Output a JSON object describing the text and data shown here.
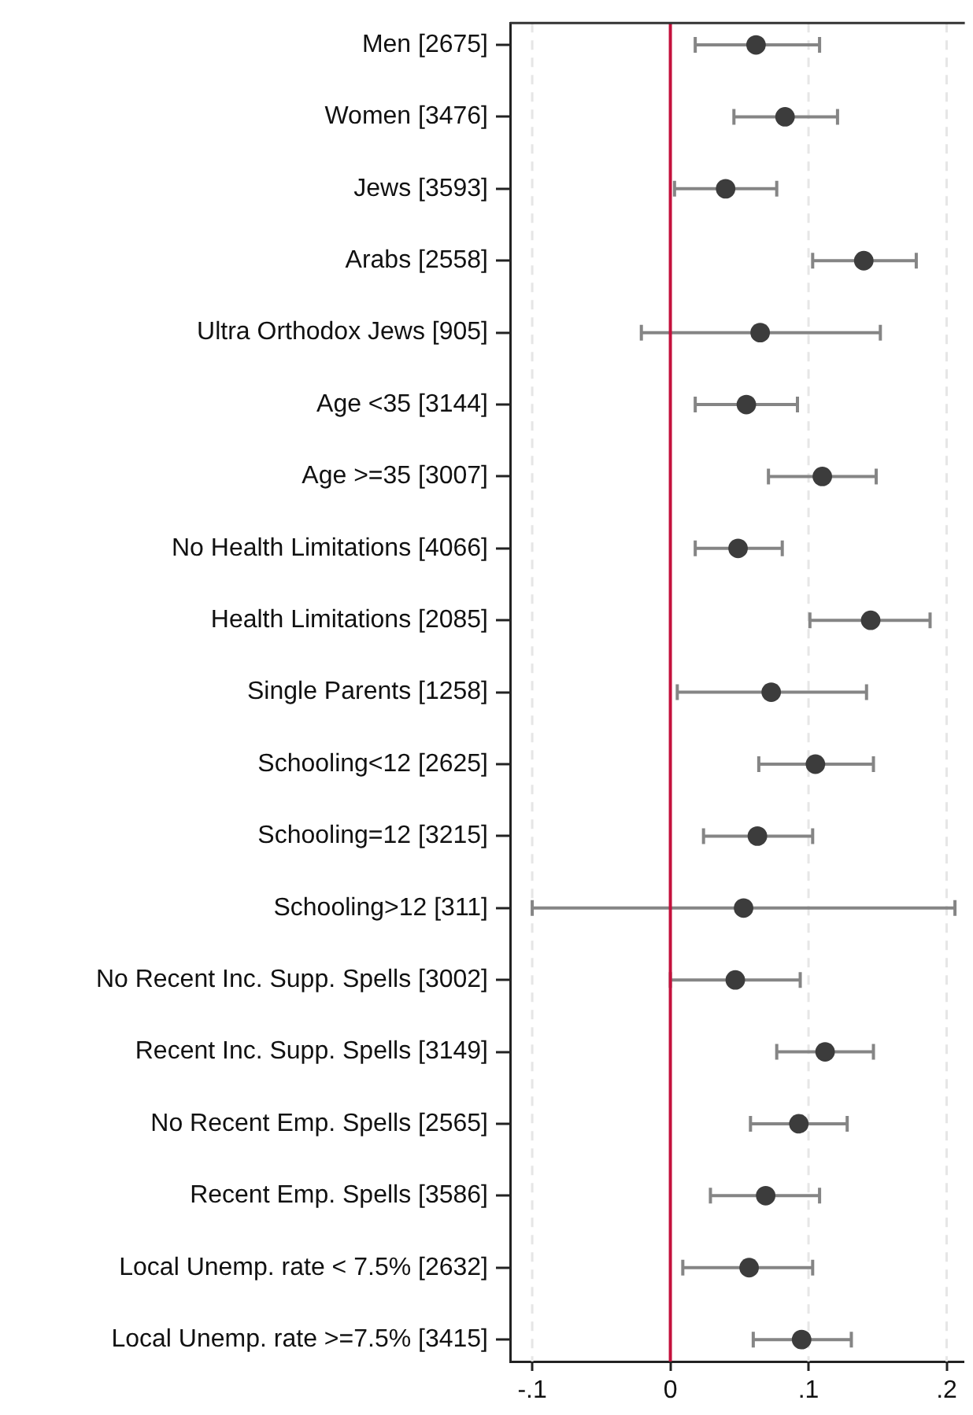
{
  "chart_data": {
    "type": "scatter",
    "orientation": "horizontal",
    "categories": [
      "Men [2675]",
      "Women [3476]",
      "Jews [3593]",
      "Arabs [2558]",
      "Ultra Orthodox Jews [905]",
      "Age <35 [3144]",
      "Age >=35 [3007]",
      "No Health Limitations [4066]",
      "Health Limitations [2085]",
      "Single Parents [1258]",
      "Schooling<12 [2625]",
      "Schooling=12 [3215]",
      "Schooling>12 [311]",
      "No Recent Inc. Supp. Spells [3002]",
      "Recent Inc. Supp. Spells [3149]",
      "No Recent Emp. Spells [2565]",
      "Recent Emp. Spells [3586]",
      "Local Unemp. rate < 7.5% [2632]",
      "Local Unemp. rate >=7.5% [3415]"
    ],
    "values": [
      0.062,
      0.083,
      0.04,
      0.14,
      0.065,
      0.055,
      0.11,
      0.049,
      0.145,
      0.073,
      0.105,
      0.063,
      0.053,
      0.047,
      0.112,
      0.093,
      0.069,
      0.057,
      0.095
    ],
    "errors": [
      [
        0.018,
        0.108
      ],
      [
        0.046,
        0.121
      ],
      [
        0.003,
        0.077
      ],
      [
        0.103,
        0.178
      ],
      [
        -0.021,
        0.152
      ],
      [
        0.018,
        0.092
      ],
      [
        0.071,
        0.149
      ],
      [
        0.018,
        0.081
      ],
      [
        0.101,
        0.188
      ],
      [
        0.005,
        0.142
      ],
      [
        0.064,
        0.147
      ],
      [
        0.024,
        0.103
      ],
      [
        -0.1,
        0.206
      ],
      [
        0.0,
        0.094
      ],
      [
        0.077,
        0.147
      ],
      [
        0.058,
        0.128
      ],
      [
        0.029,
        0.108
      ],
      [
        0.009,
        0.103
      ],
      [
        0.06,
        0.131
      ]
    ],
    "color": "#3c3c3c",
    "marker": "circle",
    "xlim": [
      -0.116,
      0.212
    ],
    "xticks": [
      {
        "value": -0.1,
        "label": "-.1"
      },
      0,
      {
        "value": 0.1,
        "label": ".1"
      },
      {
        "value": 0.2,
        "label": ".2"
      }
    ],
    "grid": "x",
    "ref_lines": [
      {
        "axis": "x",
        "value": 0,
        "color": "#c4103c"
      }
    ]
  }
}
